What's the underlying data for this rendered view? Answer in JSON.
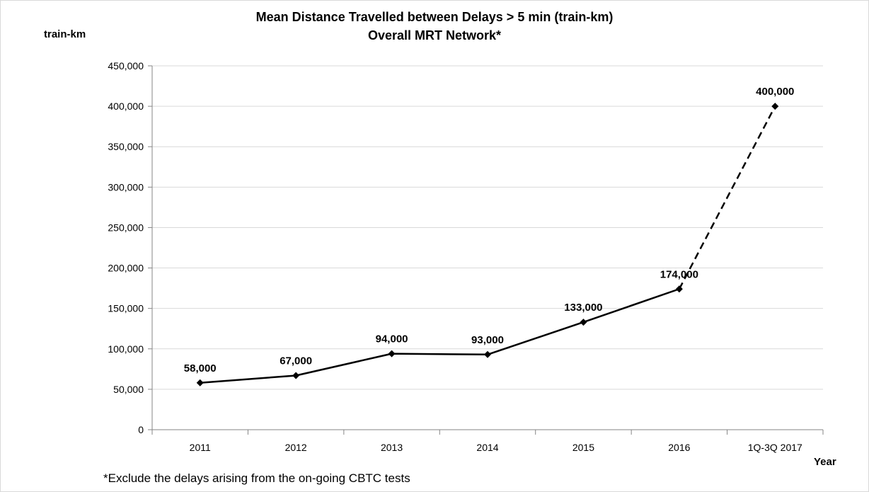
{
  "chart_data": {
    "type": "line",
    "title": "Mean Distance Travelled between Delays > 5 min (train-km)",
    "subtitle": "Overall MRT Network*",
    "ylabel": "train-km",
    "xlabel": "Year",
    "categories": [
      "2011",
      "2012",
      "2013",
      "2014",
      "2015",
      "2016",
      "1Q-3Q 2017"
    ],
    "series": [
      {
        "values": [
          58000,
          67000,
          94000,
          93000,
          133000,
          174000,
          400000
        ],
        "data_labels": [
          "58,000",
          "67,000",
          "94,000",
          "93,000",
          "133,000",
          "174,000",
          "400,000"
        ],
        "dashed_from_index": 5
      }
    ],
    "ylim": [
      0,
      450000
    ],
    "yticks": [
      0,
      50000,
      100000,
      150000,
      200000,
      250000,
      300000,
      350000,
      400000,
      450000
    ],
    "ytick_labels": [
      "0",
      "50,000",
      "100,000",
      "150,000",
      "200,000",
      "250,000",
      "300,000",
      "350,000",
      "400,000",
      "450,000"
    ],
    "grid": true,
    "footnote": "*Exclude the delays arising from the on-going CBTC tests",
    "colors": {
      "line": "#000000",
      "grid": "#d9d9d9",
      "axis": "#868686"
    }
  }
}
